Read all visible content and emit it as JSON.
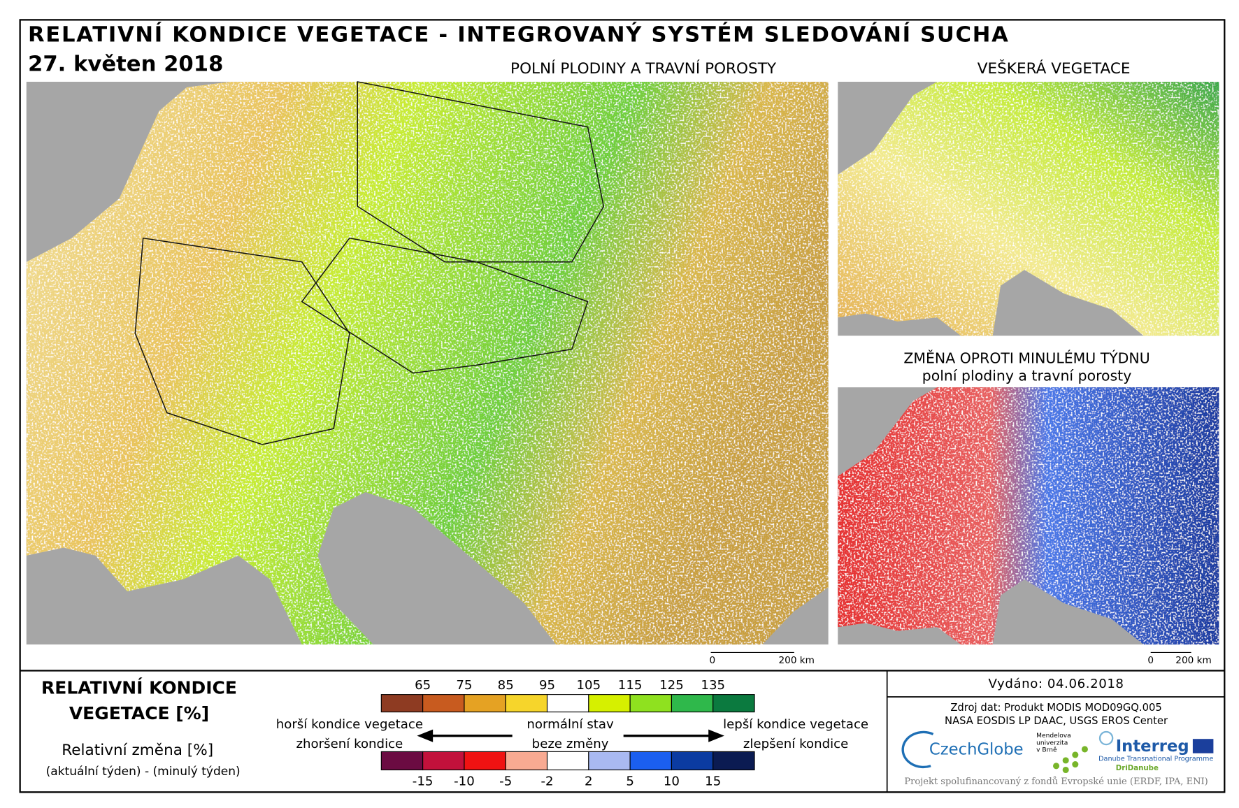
{
  "header": {
    "title": "RELATIVNÍ KONDICE VEGETACE - INTEGROVANÝ SYSTÉM SLEDOVÁNÍ SUCHA",
    "date": "27. květen 2018"
  },
  "maps": {
    "main": {
      "title": "POLNÍ PLODINY A TRAVNÍ POROSTY"
    },
    "all_vegetation": {
      "title": "VEŠKERÁ VEGETACE"
    },
    "change": {
      "title": "ZMĚNA OPROTI MINULÉMU TÝDNU",
      "subtitle": "polní plodiny a travní porosty"
    }
  },
  "scale_bar": {
    "start": 0,
    "end_label": "200 km"
  },
  "legend": {
    "title_line1": "RELATIVNÍ KONDICE",
    "title_line2": "VEGETACE [%]",
    "change_title": "Relativní změna [%]",
    "change_note": "(aktuální týden) - (minulý týden)",
    "condition": {
      "ticks": [
        65,
        75,
        85,
        95,
        105,
        115,
        125,
        135
      ],
      "colors": [
        "#8e3b22",
        "#c85b1f",
        "#e5a223",
        "#f6d52b",
        "#ffffff",
        "#d6f000",
        "#8fe11f",
        "#2fb84b",
        "#0b7a3f"
      ]
    },
    "change": {
      "ticks": [
        -15,
        -10,
        -5,
        -2,
        2,
        5,
        10,
        15
      ],
      "colors": [
        "#6b0b42",
        "#c2113b",
        "#f01212",
        "#f8aa92",
        "#ffffff",
        "#a9b9f1",
        "#1b5ff0",
        "#0b3ba1",
        "#0b1b52"
      ]
    },
    "worse": "horší kondice vegetace",
    "normal": "normální stav",
    "better": "lepší kondice vegetace",
    "worsening": "zhoršení kondice",
    "no_change": "beze změny",
    "improvement": "zlepšení kondice"
  },
  "info": {
    "issued": "Vydáno: 04.06.2018",
    "source_line1": "Zdroj dat: Produkt MODIS MOD09GQ.005",
    "source_line2": "NASA EOSDIS LP DAAC, USGS EROS Center",
    "logo_czechglobe": "CzechGlobe",
    "logo_mendel": [
      "Mendelova",
      "univerzita",
      "v Brně"
    ],
    "logo_interreg": "Interreg",
    "logo_programme": "Danube Transnational Programme",
    "logo_project": "DriDanube",
    "footer": "Projekt spolufinancovaný z fondů Evropské unie (ERDF, IPA, ENI)"
  }
}
